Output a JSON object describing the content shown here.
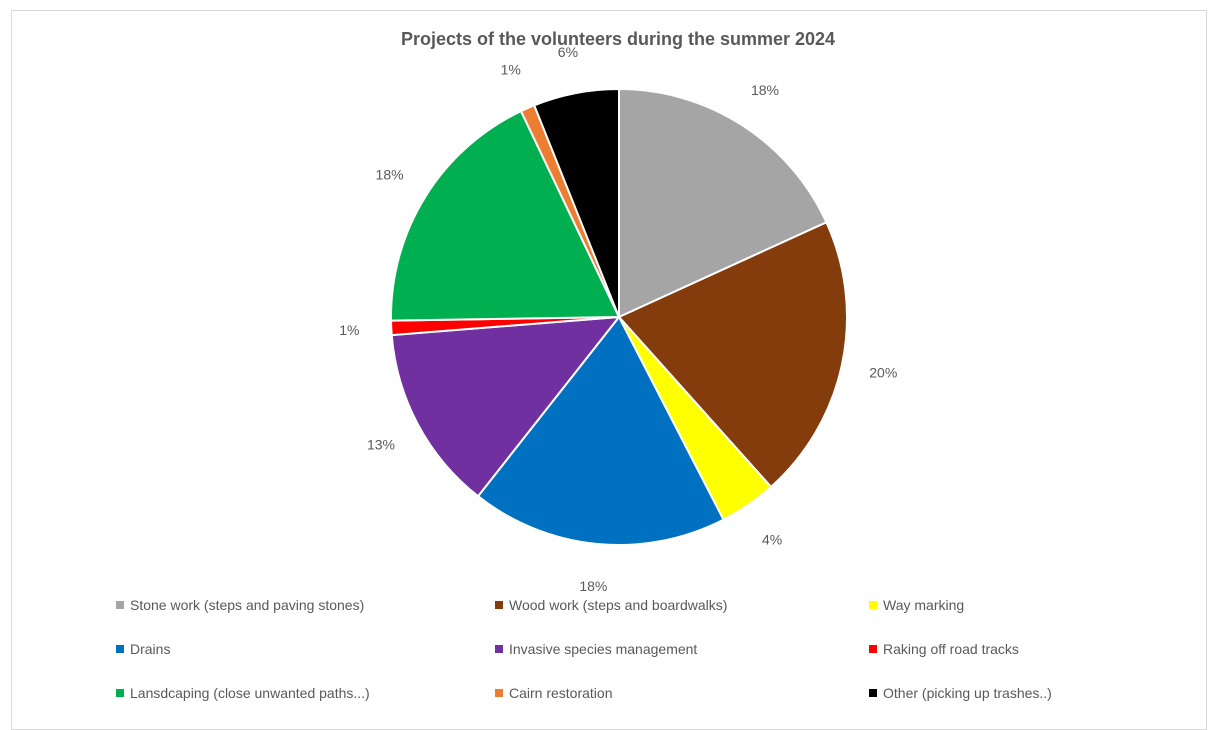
{
  "chart_data": {
    "type": "pie",
    "title": "Projects of the volunteers during the summer 2024",
    "categories": [
      "Stone work (steps and paving stones)",
      "Wood work (steps and boardwalks)",
      "Way marking",
      "Drains",
      "Invasive species management",
      "Raking off road tracks",
      "Lansdcaping (close unwanted paths...)",
      "Cairn restoration",
      "Other (picking up trashes..)"
    ],
    "values": [
      18,
      20,
      4,
      18,
      13,
      1,
      18,
      1,
      6
    ],
    "data_labels": [
      "18%",
      "20%",
      "4%",
      "18%",
      "13%",
      "1%",
      "18%",
      "1%",
      "6%"
    ],
    "colors": [
      "#a5a5a5",
      "#843c0c",
      "#ffff00",
      "#0070c0",
      "#7030a0",
      "#ff0000",
      "#00b050",
      "#ed7d31",
      "#000000"
    ],
    "legend_position": "bottom",
    "start_angle": "12 o'clock",
    "direction": "clockwise"
  }
}
